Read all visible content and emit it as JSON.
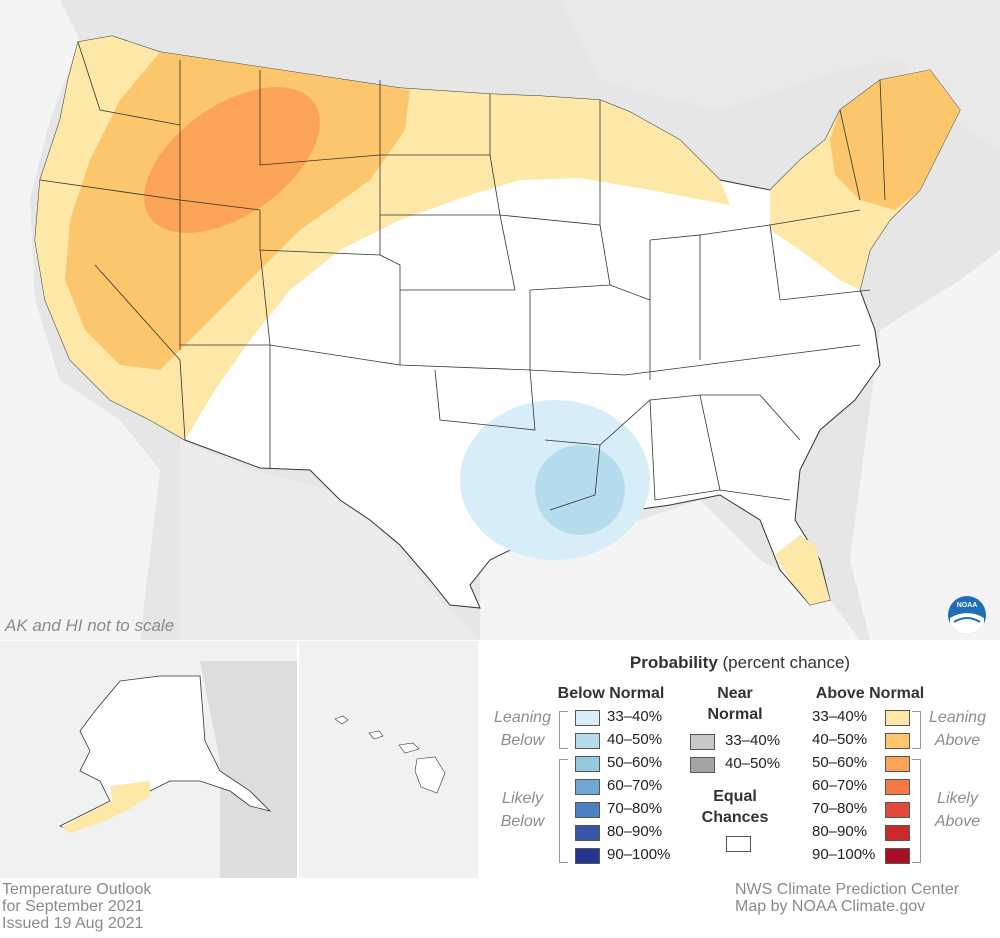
{
  "map_note": "AK and HI not to scale",
  "credits": {
    "left": [
      "Temperature Outlook",
      "for September 2021",
      "Issued 19 Aug 2021"
    ],
    "right": [
      "NWS Climate Prediction Center",
      "Map by NOAA Climate.gov"
    ]
  },
  "logo_text": "NOAA",
  "legend": {
    "title_bold": "Probability",
    "title_rest": " (percent chance)",
    "below": {
      "heading": "Below Normal",
      "leaning_label": [
        "Leaning",
        "Below"
      ],
      "likely_label": [
        "Likely",
        "Below"
      ],
      "rows": [
        {
          "label": "33–40%",
          "color": "#d7eef8"
        },
        {
          "label": "40–50%",
          "color": "#b5dced"
        },
        {
          "label": "50–60%",
          "color": "#96c8e0"
        },
        {
          "label": "60–70%",
          "color": "#70a8d3"
        },
        {
          "label": "70–80%",
          "color": "#4b80c2"
        },
        {
          "label": "80–90%",
          "color": "#3a55a8"
        },
        {
          "label": "90–100%",
          "color": "#263592"
        }
      ]
    },
    "near": {
      "heading": [
        "Near",
        "Normal"
      ],
      "rows": [
        {
          "label": "33–40%",
          "color": "#c8c8c8"
        },
        {
          "label": "40–50%",
          "color": "#a4a4a4"
        }
      ]
    },
    "equal": {
      "heading": [
        "Equal",
        "Chances"
      ],
      "color": "#ffffff"
    },
    "above": {
      "heading": "Above Normal",
      "leaning_label": [
        "Leaning",
        "Above"
      ],
      "likely_label": [
        "Likely",
        "Above"
      ],
      "rows": [
        {
          "label": "33–40%",
          "color": "#fde8a8"
        },
        {
          "label": "40–50%",
          "color": "#fcc66c"
        },
        {
          "label": "50–60%",
          "color": "#fba458"
        },
        {
          "label": "60–70%",
          "color": "#f37a44"
        },
        {
          "label": "70–80%",
          "color": "#e3493a"
        },
        {
          "label": "80–90%",
          "color": "#cc2a2a"
        },
        {
          "label": "90–100%",
          "color": "#aa0e26"
        }
      ]
    }
  }
}
